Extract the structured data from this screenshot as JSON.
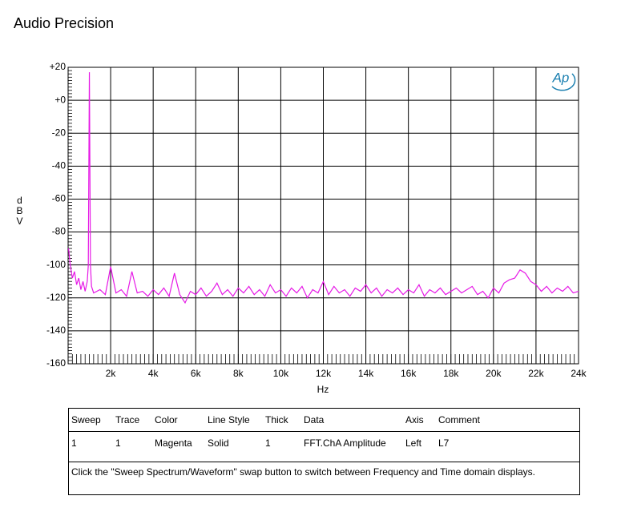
{
  "header": {
    "title": "Audio Precision",
    "logo": "Ap"
  },
  "chart_data": {
    "type": "line",
    "xlabel": "Hz",
    "ylabel": "dBV",
    "x": [
      20,
      100,
      200,
      300,
      400,
      500,
      600,
      700,
      800,
      900,
      950,
      1000,
      1050,
      1100,
      1200,
      1500,
      1750,
      2000,
      2250,
      2500,
      2750,
      3000,
      3250,
      3500,
      3750,
      4000,
      4250,
      4500,
      4750,
      5000,
      5250,
      5500,
      5750,
      6000,
      6250,
      6500,
      6750,
      7000,
      7250,
      7500,
      7750,
      8000,
      8250,
      8500,
      8750,
      9000,
      9250,
      9500,
      9750,
      10000,
      10250,
      10500,
      10750,
      11000,
      11250,
      11500,
      11750,
      12000,
      12250,
      12500,
      12750,
      13000,
      13250,
      13500,
      13750,
      14000,
      14250,
      14500,
      14750,
      15000,
      15250,
      15500,
      15750,
      16000,
      16250,
      16500,
      16750,
      17000,
      17250,
      17500,
      17750,
      18000,
      18250,
      18500,
      18750,
      19000,
      19250,
      19500,
      19750,
      20000,
      20250,
      20500,
      20750,
      21000,
      21250,
      21500,
      21750,
      22000,
      22250,
      22500,
      22750,
      23000,
      23250,
      23500,
      23750,
      24000
    ],
    "series": [
      {
        "color": "#e619e6",
        "values": [
          -90,
          -100,
          -108,
          -104,
          -112,
          -108,
          -115,
          -110,
          -116,
          -110,
          -100,
          17,
          -100,
          -113,
          -117,
          -115,
          -118,
          -101,
          -117,
          -115,
          -119,
          -104,
          -117,
          -116,
          -119,
          -115,
          -118,
          -114,
          -119,
          -105,
          -118,
          -123,
          -116,
          -118,
          -114,
          -119,
          -116,
          -111,
          -118,
          -115,
          -119,
          -114,
          -117,
          -113,
          -118,
          -115,
          -119,
          -112,
          -117,
          -115,
          -119,
          -114,
          -117,
          -113,
          -120,
          -115,
          -117,
          -110,
          -118,
          -113,
          -117,
          -115,
          -119,
          -114,
          -116,
          -112,
          -117,
          -114,
          -119,
          -115,
          -117,
          -114,
          -118,
          -115,
          -117,
          -112,
          -119,
          -115,
          -117,
          -114,
          -118,
          -116,
          -114,
          -117,
          -115,
          -113,
          -118,
          -116,
          -120,
          -114,
          -117,
          -111,
          -109,
          -108,
          -103,
          -105,
          -110,
          -112,
          -116,
          -113,
          -117,
          -114,
          -116,
          -113,
          -117,
          -116
        ]
      }
    ],
    "xlim": [
      0,
      24000
    ],
    "xticks": [
      {
        "value": 2000,
        "label": "2k"
      },
      {
        "value": 4000,
        "label": "4k"
      },
      {
        "value": 6000,
        "label": "6k"
      },
      {
        "value": 8000,
        "label": "8k"
      },
      {
        "value": 10000,
        "label": "10k"
      },
      {
        "value": 12000,
        "label": "12k"
      },
      {
        "value": 14000,
        "label": "14k"
      },
      {
        "value": 16000,
        "label": "16k"
      },
      {
        "value": 18000,
        "label": "18k"
      },
      {
        "value": 20000,
        "label": "20k"
      },
      {
        "value": 22000,
        "label": "22k"
      },
      {
        "value": 24000,
        "label": "24k"
      }
    ],
    "ylim": [
      -160,
      20
    ],
    "yticks": [
      {
        "value": 20,
        "label": "+20"
      },
      {
        "value": 0,
        "label": "+0"
      },
      -20,
      -40,
      -60,
      -80,
      -100,
      -120,
      -140,
      -160
    ],
    "grid": true
  },
  "table": {
    "header": [
      "Sweep",
      "Trace",
      "Color",
      "Line Style",
      "Thick",
      "Data",
      "Axis",
      "Comment"
    ],
    "rows": [
      [
        1,
        1,
        "Magenta",
        "Solid",
        1,
        "FFT.ChA Amplitude",
        "Left",
        "L7"
      ]
    ],
    "note": "Click the \"Sweep Spectrum/Waveform\" swap button to switch between Frequency and Time domain displays."
  }
}
